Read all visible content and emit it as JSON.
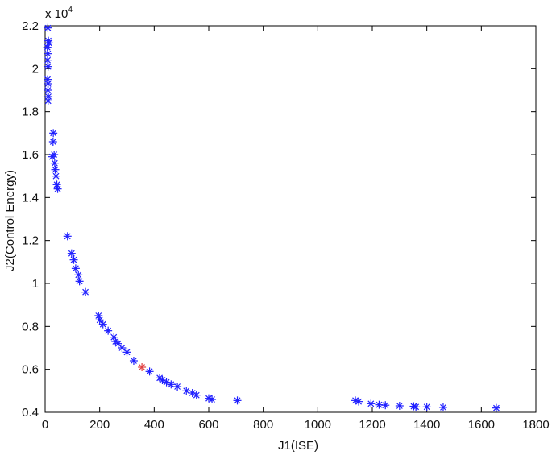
{
  "chart_data": {
    "type": "scatter",
    "title": "",
    "xlabel": "J1(ISE)",
    "ylabel": "J2(Control Energy)",
    "y_multiplier_base": "x 10",
    "y_multiplier_exponent": "4",
    "xlim": [
      0,
      1800
    ],
    "ylim": [
      0.4,
      2.2
    ],
    "xticks": [
      0,
      200,
      400,
      600,
      800,
      1000,
      1200,
      1400,
      1600,
      1800
    ],
    "yticks": [
      0.4,
      0.6,
      0.8,
      1,
      1.2,
      1.4,
      1.6,
      1.8,
      2,
      2.2
    ],
    "ytick_labels": [
      "0.4",
      "0.6",
      "0.8",
      "1",
      "1.2",
      "1.4",
      "1.6",
      "1.8",
      "2",
      "2.2"
    ],
    "grid": false,
    "marker": "asterisk",
    "series": [
      {
        "color": "#1f1fff",
        "points": [
          [
            10,
            2.19
          ],
          [
            12,
            2.13
          ],
          [
            14,
            2.12
          ],
          [
            8,
            2.1
          ],
          [
            10,
            2.07
          ],
          [
            9,
            2.04
          ],
          [
            11,
            2.01
          ],
          [
            9,
            1.95
          ],
          [
            11,
            1.93
          ],
          [
            10,
            1.9
          ],
          [
            12,
            1.87
          ],
          [
            11,
            1.85
          ],
          [
            30,
            1.7
          ],
          [
            29,
            1.66
          ],
          [
            33,
            1.6
          ],
          [
            26,
            1.59
          ],
          [
            35,
            1.56
          ],
          [
            37,
            1.53
          ],
          [
            40,
            1.5
          ],
          [
            43,
            1.46
          ],
          [
            46,
            1.44
          ],
          [
            82,
            1.22
          ],
          [
            97,
            1.14
          ],
          [
            105,
            1.11
          ],
          [
            112,
            1.07
          ],
          [
            122,
            1.04
          ],
          [
            126,
            1.01
          ],
          [
            148,
            0.96
          ],
          [
            196,
            0.85
          ],
          [
            200,
            0.83
          ],
          [
            212,
            0.81
          ],
          [
            231,
            0.78
          ],
          [
            252,
            0.75
          ],
          [
            258,
            0.73
          ],
          [
            268,
            0.72
          ],
          [
            282,
            0.7
          ],
          [
            300,
            0.68
          ],
          [
            325,
            0.64
          ],
          [
            383,
            0.59
          ],
          [
            420,
            0.56
          ],
          [
            430,
            0.55
          ],
          [
            445,
            0.54
          ],
          [
            462,
            0.53
          ],
          [
            485,
            0.52
          ],
          [
            518,
            0.5
          ],
          [
            540,
            0.49
          ],
          [
            555,
            0.48
          ],
          [
            600,
            0.465
          ],
          [
            612,
            0.46
          ],
          [
            705,
            0.455
          ],
          [
            1138,
            0.455
          ],
          [
            1150,
            0.45
          ],
          [
            1195,
            0.44
          ],
          [
            1225,
            0.435
          ],
          [
            1248,
            0.433
          ],
          [
            1300,
            0.43
          ],
          [
            1352,
            0.428
          ],
          [
            1360,
            0.425
          ],
          [
            1400,
            0.425
          ],
          [
            1460,
            0.423
          ],
          [
            1655,
            0.42
          ]
        ]
      },
      {
        "color": "#e04040",
        "points": [
          [
            355,
            0.61
          ]
        ]
      }
    ]
  }
}
